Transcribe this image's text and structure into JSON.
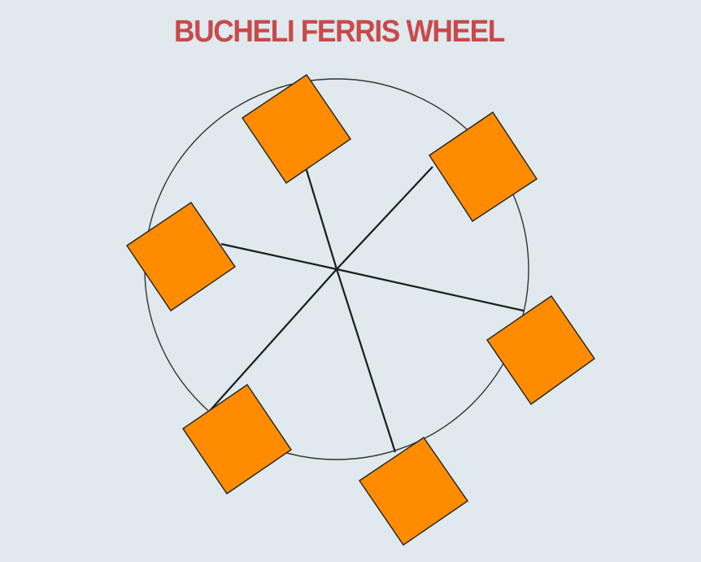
{
  "title": "BUCHELI FERRIS WHEEL",
  "colors": {
    "background": "#dfe9ee",
    "title": "#c94a4a",
    "cabin_fill": "#ff8c00",
    "cabin_stroke": "#222222",
    "wheel_stroke": "#333333"
  },
  "wheel": {
    "cabin_count": 6
  }
}
